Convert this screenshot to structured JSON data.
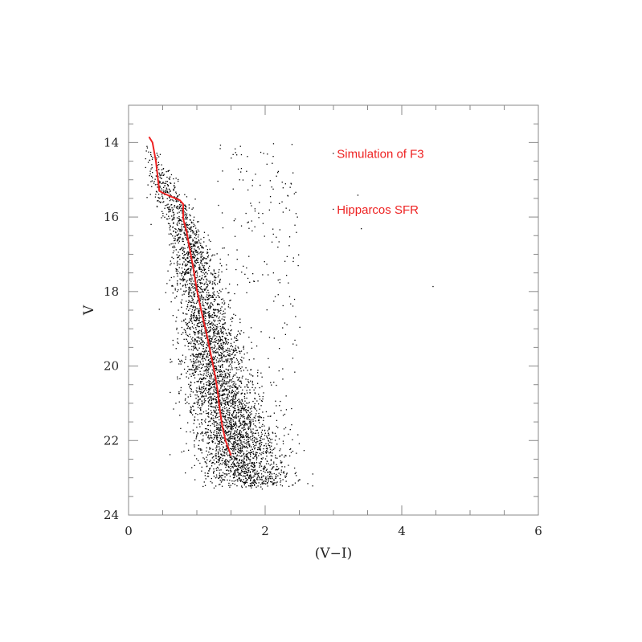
{
  "chart_data": {
    "type": "scatter",
    "title": "",
    "xlabel": "(V−I)",
    "ylabel": "V",
    "xlim": [
      0,
      6
    ],
    "ylim": [
      24,
      13
    ],
    "y_inverted": true,
    "x_ticks": [
      0,
      2,
      4,
      6
    ],
    "x_tick_labels": [
      "0",
      "2",
      "4",
      "6"
    ],
    "y_ticks": [
      14,
      16,
      18,
      20,
      22,
      24
    ],
    "y_tick_labels": [
      "14",
      "16",
      "18",
      "20",
      "22",
      "24"
    ],
    "grid": false,
    "annotations": [
      {
        "text": "Simulation of F3",
        "x": 3.05,
        "y": 14.3,
        "color": "#ee2222"
      },
      {
        "text": "Hipparcos SFR",
        "x": 3.05,
        "y": 15.8,
        "color": "#ee2222"
      }
    ],
    "series": [
      {
        "kind": "line",
        "color": "#ee2222",
        "points": [
          [
            0.3,
            13.85
          ],
          [
            0.35,
            14.0
          ],
          [
            0.4,
            14.5
          ],
          [
            0.45,
            15.3
          ],
          [
            0.5,
            15.35
          ],
          [
            0.62,
            15.45
          ],
          [
            0.75,
            15.55
          ],
          [
            0.8,
            15.65
          ],
          [
            0.8,
            16.05
          ],
          [
            0.85,
            16.4
          ],
          [
            0.9,
            16.9
          ],
          [
            0.95,
            17.4
          ],
          [
            1.0,
            17.95
          ],
          [
            1.05,
            18.4
          ],
          [
            1.1,
            18.8
          ],
          [
            1.15,
            19.2
          ],
          [
            1.2,
            19.65
          ],
          [
            1.25,
            20.1
          ],
          [
            1.3,
            20.6
          ],
          [
            1.33,
            21.1
          ],
          [
            1.37,
            21.6
          ],
          [
            1.42,
            22.0
          ],
          [
            1.5,
            22.4
          ]
        ]
      },
      {
        "kind": "points",
        "color": "#000000",
        "description": "simulated stars along main sequence",
        "ridge": [
          [
            0.3,
            14.0
          ],
          [
            0.6,
            15.5
          ],
          [
            0.85,
            16.5
          ],
          [
            1.0,
            17.8
          ],
          [
            1.15,
            19.0
          ],
          [
            1.3,
            20.2
          ],
          [
            1.45,
            21.4
          ],
          [
            1.65,
            22.6
          ],
          [
            1.85,
            23.2
          ]
        ]
      }
    ]
  }
}
